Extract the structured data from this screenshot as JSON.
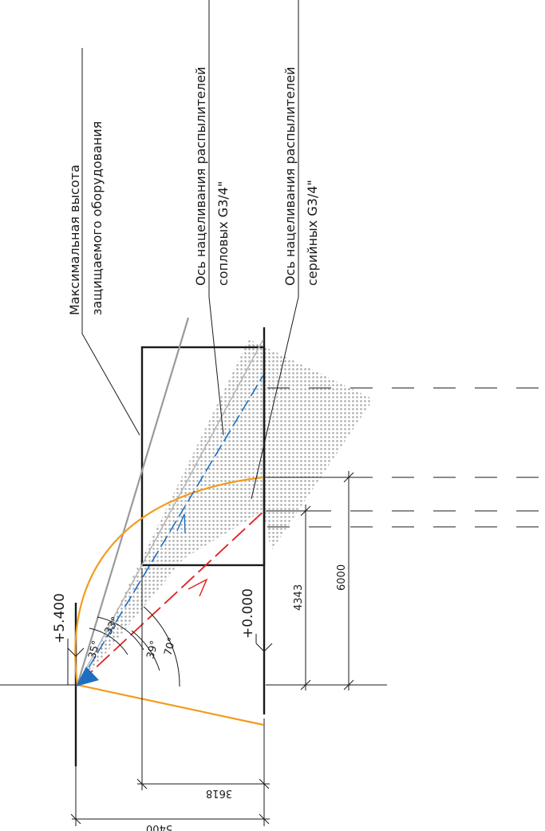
{
  "labels": {
    "max_height_line1": "Максимальная высота",
    "max_height_line2": "защищаемого оборудования",
    "axis_sopl_line1": "Ось нацеливания распылителей",
    "axis_sopl_line2": "сопловых G3/4\"",
    "axis_ser_line1": "Ось нацеливания распылителей",
    "axis_ser_line2": "серийных G3/4\""
  },
  "levels": {
    "top": "+5.400",
    "bottom": "+0.000"
  },
  "dimensions": {
    "total_height": "5400",
    "equipment_height": "3618",
    "serial_reach": "4343",
    "sopl_reach": "6000"
  },
  "angles": {
    "a1": "35°",
    "a2": "33°",
    "a3": "39°",
    "a4": "70°"
  },
  "colors": {
    "orange": "#f39c1f",
    "blue_axis": "#1f6fc0",
    "red_axis": "#e02020",
    "spray_dots": "#a9a9a9",
    "gray_line": "#9a9a9a"
  }
}
